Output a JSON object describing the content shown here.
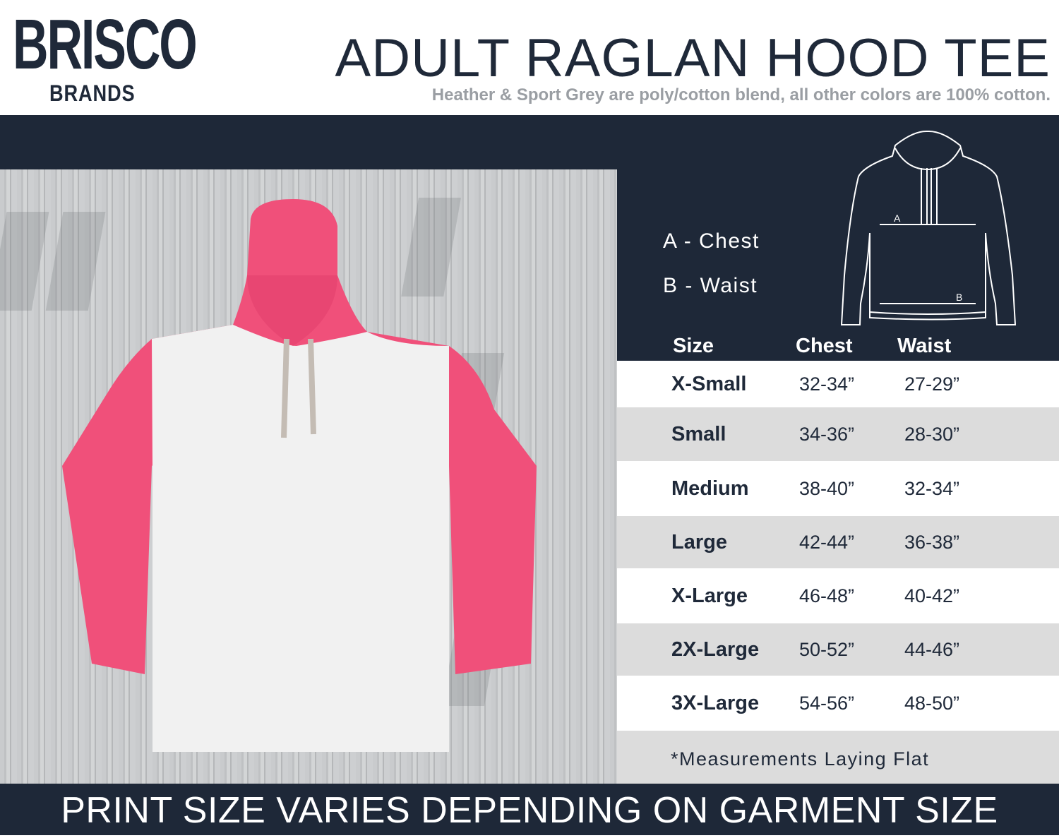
{
  "logo": {
    "top": "BRISCO",
    "bottom": "BRANDS"
  },
  "header": {
    "title": "ADULT RAGLAN HOOD TEE",
    "subtitle": "Heather & Sport Grey are poly/cotton blend, all other colors are 100% cotton."
  },
  "legend": {
    "a": "A - Chest",
    "b": "B - Waist",
    "diagram_a": "A",
    "diagram_b": "B"
  },
  "table": {
    "headers": [
      "Size",
      "Chest",
      "Waist"
    ],
    "rows": [
      {
        "size": "X-Small",
        "chest": "32-34”",
        "waist": "27-29”"
      },
      {
        "size": "Small",
        "chest": "34-36”",
        "waist": "28-30”"
      },
      {
        "size": "Medium",
        "chest": "38-40”",
        "waist": "32-34”"
      },
      {
        "size": "Large",
        "chest": "42-44”",
        "waist": "36-38”"
      },
      {
        "size": "X-Large",
        "chest": "46-48”",
        "waist": "40-42”"
      },
      {
        "size": "2X-Large",
        "chest": "50-52”",
        "waist": "44-46”"
      },
      {
        "size": "3X-Large",
        "chest": "54-56”",
        "waist": "48-50”"
      }
    ],
    "note": "*Measurements Laying Flat"
  },
  "footer": {
    "text": "PRINT SIZE VARIES DEPENDING ON GARMENT SIZE"
  },
  "colors": {
    "navy": "#1e2838",
    "garment_pink": "#f0507a",
    "garment_white": "#f1f1f1",
    "row_alt": "#dcdcdc",
    "subtitle_grey": "#9a9ea3"
  }
}
